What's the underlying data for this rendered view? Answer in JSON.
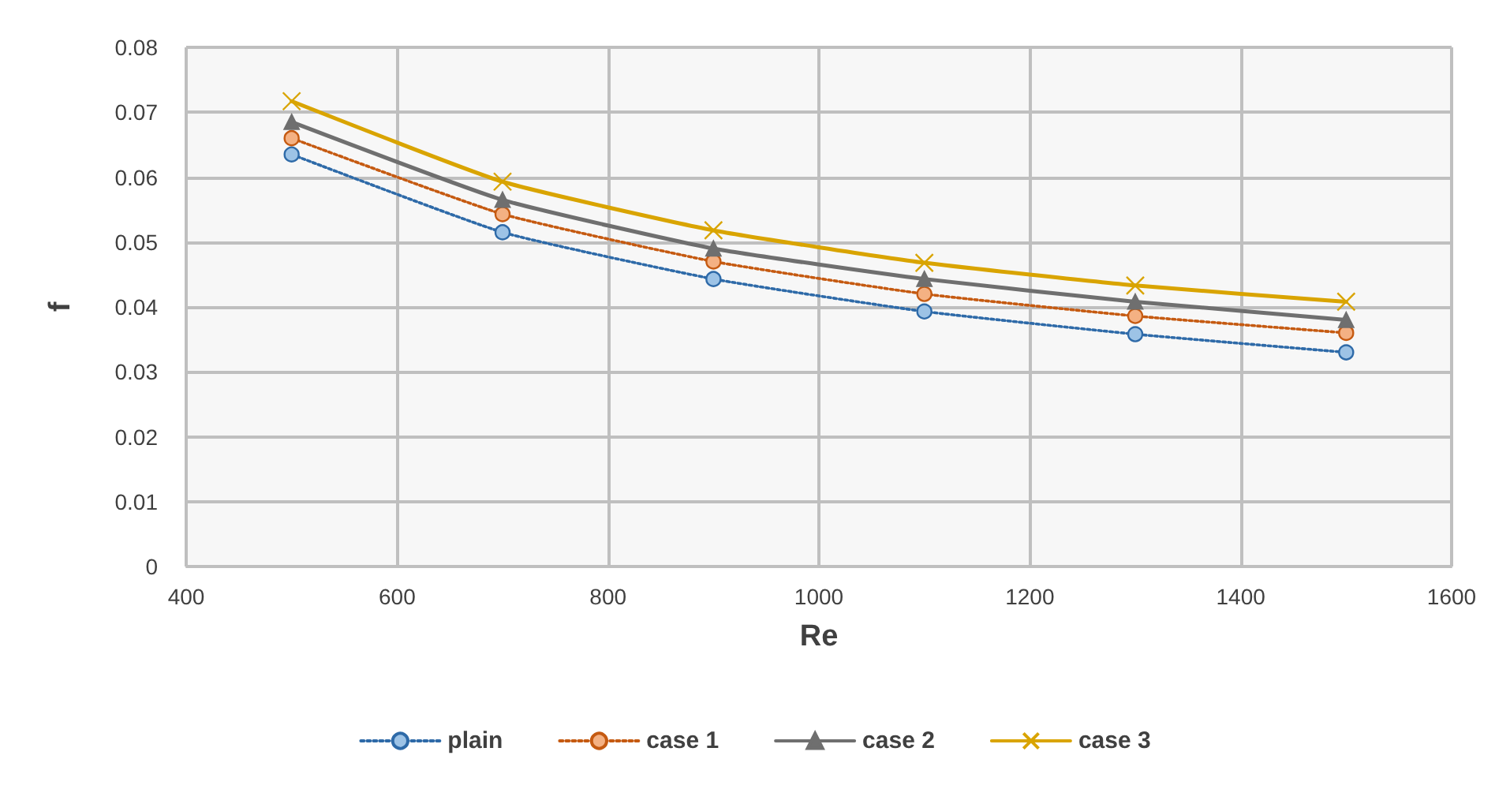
{
  "chart_data": {
    "type": "line",
    "xlabel": "Re",
    "ylabel": "f",
    "x": [
      500,
      700,
      900,
      1100,
      1300,
      1500
    ],
    "xlim": [
      400,
      1600
    ],
    "xticks": [
      400,
      600,
      800,
      1000,
      1200,
      1400,
      1600
    ],
    "ylim": [
      0,
      0.08
    ],
    "yticks": [
      0,
      0.01,
      0.02,
      0.03,
      0.04,
      0.05,
      0.06,
      0.07,
      0.08
    ],
    "grid": true,
    "legend": "bottom",
    "series": [
      {
        "name": "plain",
        "color": "#2e6aa8",
        "values": [
          0.0635,
          0.0515,
          0.0443,
          0.0393,
          0.0358,
          0.033
        ],
        "marker": "circle",
        "line_style": "dotted"
      },
      {
        "name": "case 1",
        "color": "#c55a11",
        "values": [
          0.066,
          0.0543,
          0.047,
          0.042,
          0.0386,
          0.036
        ],
        "marker": "circle",
        "line_style": "dotted"
      },
      {
        "name": "case 2",
        "color": "#6f6f6f",
        "values": [
          0.0685,
          0.0565,
          0.049,
          0.0443,
          0.0408,
          0.038
        ],
        "marker": "triangle",
        "line_style": "solid"
      },
      {
        "name": "case 3",
        "color": "#d9a400",
        "values": [
          0.0717,
          0.0593,
          0.0518,
          0.0468,
          0.0433,
          0.0408
        ],
        "marker": "cross",
        "line_style": "solid"
      }
    ]
  }
}
